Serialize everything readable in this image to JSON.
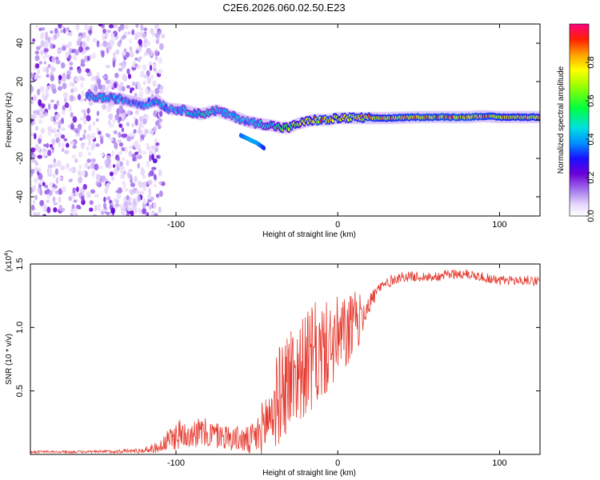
{
  "title": "C2E6.2026.060.02.50.E23",
  "chart_data": [
    {
      "type": "heatmap",
      "name": "spectrogram",
      "xlabel": "Height of straight line (km)",
      "ylabel": "Frequency (Hz)",
      "xlim": [
        -190,
        125
      ],
      "ylim": [
        -50,
        50
      ],
      "x_ticks": [
        -100,
        0,
        100
      ],
      "y_ticks": [
        -40,
        -20,
        0,
        20,
        40
      ],
      "colorbar": {
        "label": "Normalized spectral amplitude",
        "range": [
          0,
          1
        ],
        "ticks": [
          "0.0",
          "0.2",
          "0.4",
          "0.6",
          "0.8"
        ],
        "tick_values": [
          0.0,
          0.2,
          0.4,
          0.6,
          0.8
        ]
      },
      "ridge": {
        "x": [
          -150,
          -135,
          -120,
          -112,
          -105,
          -95,
          -85,
          -75,
          -65,
          -55,
          -48,
          -40,
          -35,
          -30,
          -25,
          -20,
          -15,
          -10,
          -5,
          0,
          10,
          20,
          30,
          40,
          50,
          60,
          70,
          80,
          90,
          100,
          110,
          125
        ],
        "freq": [
          12,
          11,
          8,
          10,
          6,
          5,
          3,
          5,
          2,
          -1,
          -2,
          -3,
          -4,
          -4,
          -2,
          -1,
          0,
          0,
          0,
          1,
          1,
          1,
          1,
          1.2,
          1.5,
          1.5,
          1.5,
          1.5,
          2,
          1.5,
          1.5,
          1.5
        ],
        "amp": [
          0.5,
          0.45,
          0.4,
          0.5,
          0.45,
          0.5,
          0.55,
          0.5,
          0.5,
          0.45,
          0.55,
          0.6,
          0.65,
          0.7,
          0.75,
          0.8,
          0.9,
          0.95,
          0.9,
          0.85,
          0.9,
          0.9,
          0.9,
          0.92,
          0.95,
          0.95,
          0.97,
          0.97,
          0.95,
          0.9,
          0.9,
          0.9
        ]
      },
      "secondary_ridge": {
        "x": [
          -60,
          -55,
          -50,
          -45
        ],
        "freq": [
          -8,
          -10,
          -12,
          -15
        ],
        "amp": [
          0.35,
          0.4,
          0.4,
          0.3
        ]
      }
    },
    {
      "type": "line",
      "name": "snr",
      "xlabel": "Height of straight line (km)",
      "ylabel": "SNR (10 * v/v)",
      "scale_label": "(x10",
      "scale_exp": "4",
      "scale_close": ")",
      "xlim": [
        -190,
        125
      ],
      "ylim": [
        0,
        1.5
      ],
      "x_ticks": [
        -100,
        0,
        100
      ],
      "y_ticks": [
        0.5,
        1.0,
        1.5
      ],
      "y_tick_labels": [
        "0.5",
        "1.0",
        "1.5"
      ],
      "color": "#e53a2f",
      "envelope": {
        "x": [
          -190,
          -150,
          -120,
          -110,
          -100,
          -90,
          -80,
          -70,
          -60,
          -55,
          -50,
          -40,
          -35,
          -30,
          -25,
          -20,
          -15,
          -10,
          -5,
          0,
          5,
          10,
          15,
          20,
          25,
          30,
          35,
          40,
          50,
          60,
          70,
          80,
          90,
          95,
          100,
          110,
          125
        ],
        "mean": [
          0.02,
          0.02,
          0.03,
          0.06,
          0.15,
          0.18,
          0.16,
          0.14,
          0.12,
          0.1,
          0.14,
          0.35,
          0.5,
          0.6,
          0.65,
          0.7,
          0.75,
          0.8,
          0.85,
          0.9,
          0.95,
          1.0,
          1.1,
          1.2,
          1.3,
          1.35,
          1.38,
          1.4,
          1.4,
          1.4,
          1.42,
          1.42,
          1.4,
          1.38,
          1.37,
          1.37,
          1.37
        ],
        "noise": [
          0.01,
          0.01,
          0.02,
          0.05,
          0.12,
          0.12,
          0.12,
          0.1,
          0.1,
          0.12,
          0.15,
          0.35,
          0.4,
          0.45,
          0.4,
          0.4,
          0.45,
          0.4,
          0.35,
          0.35,
          0.3,
          0.3,
          0.15,
          0.08,
          0.06,
          0.05,
          0.04,
          0.04,
          0.04,
          0.04,
          0.04,
          0.04,
          0.04,
          0.04,
          0.04,
          0.04,
          0.04
        ]
      }
    }
  ]
}
